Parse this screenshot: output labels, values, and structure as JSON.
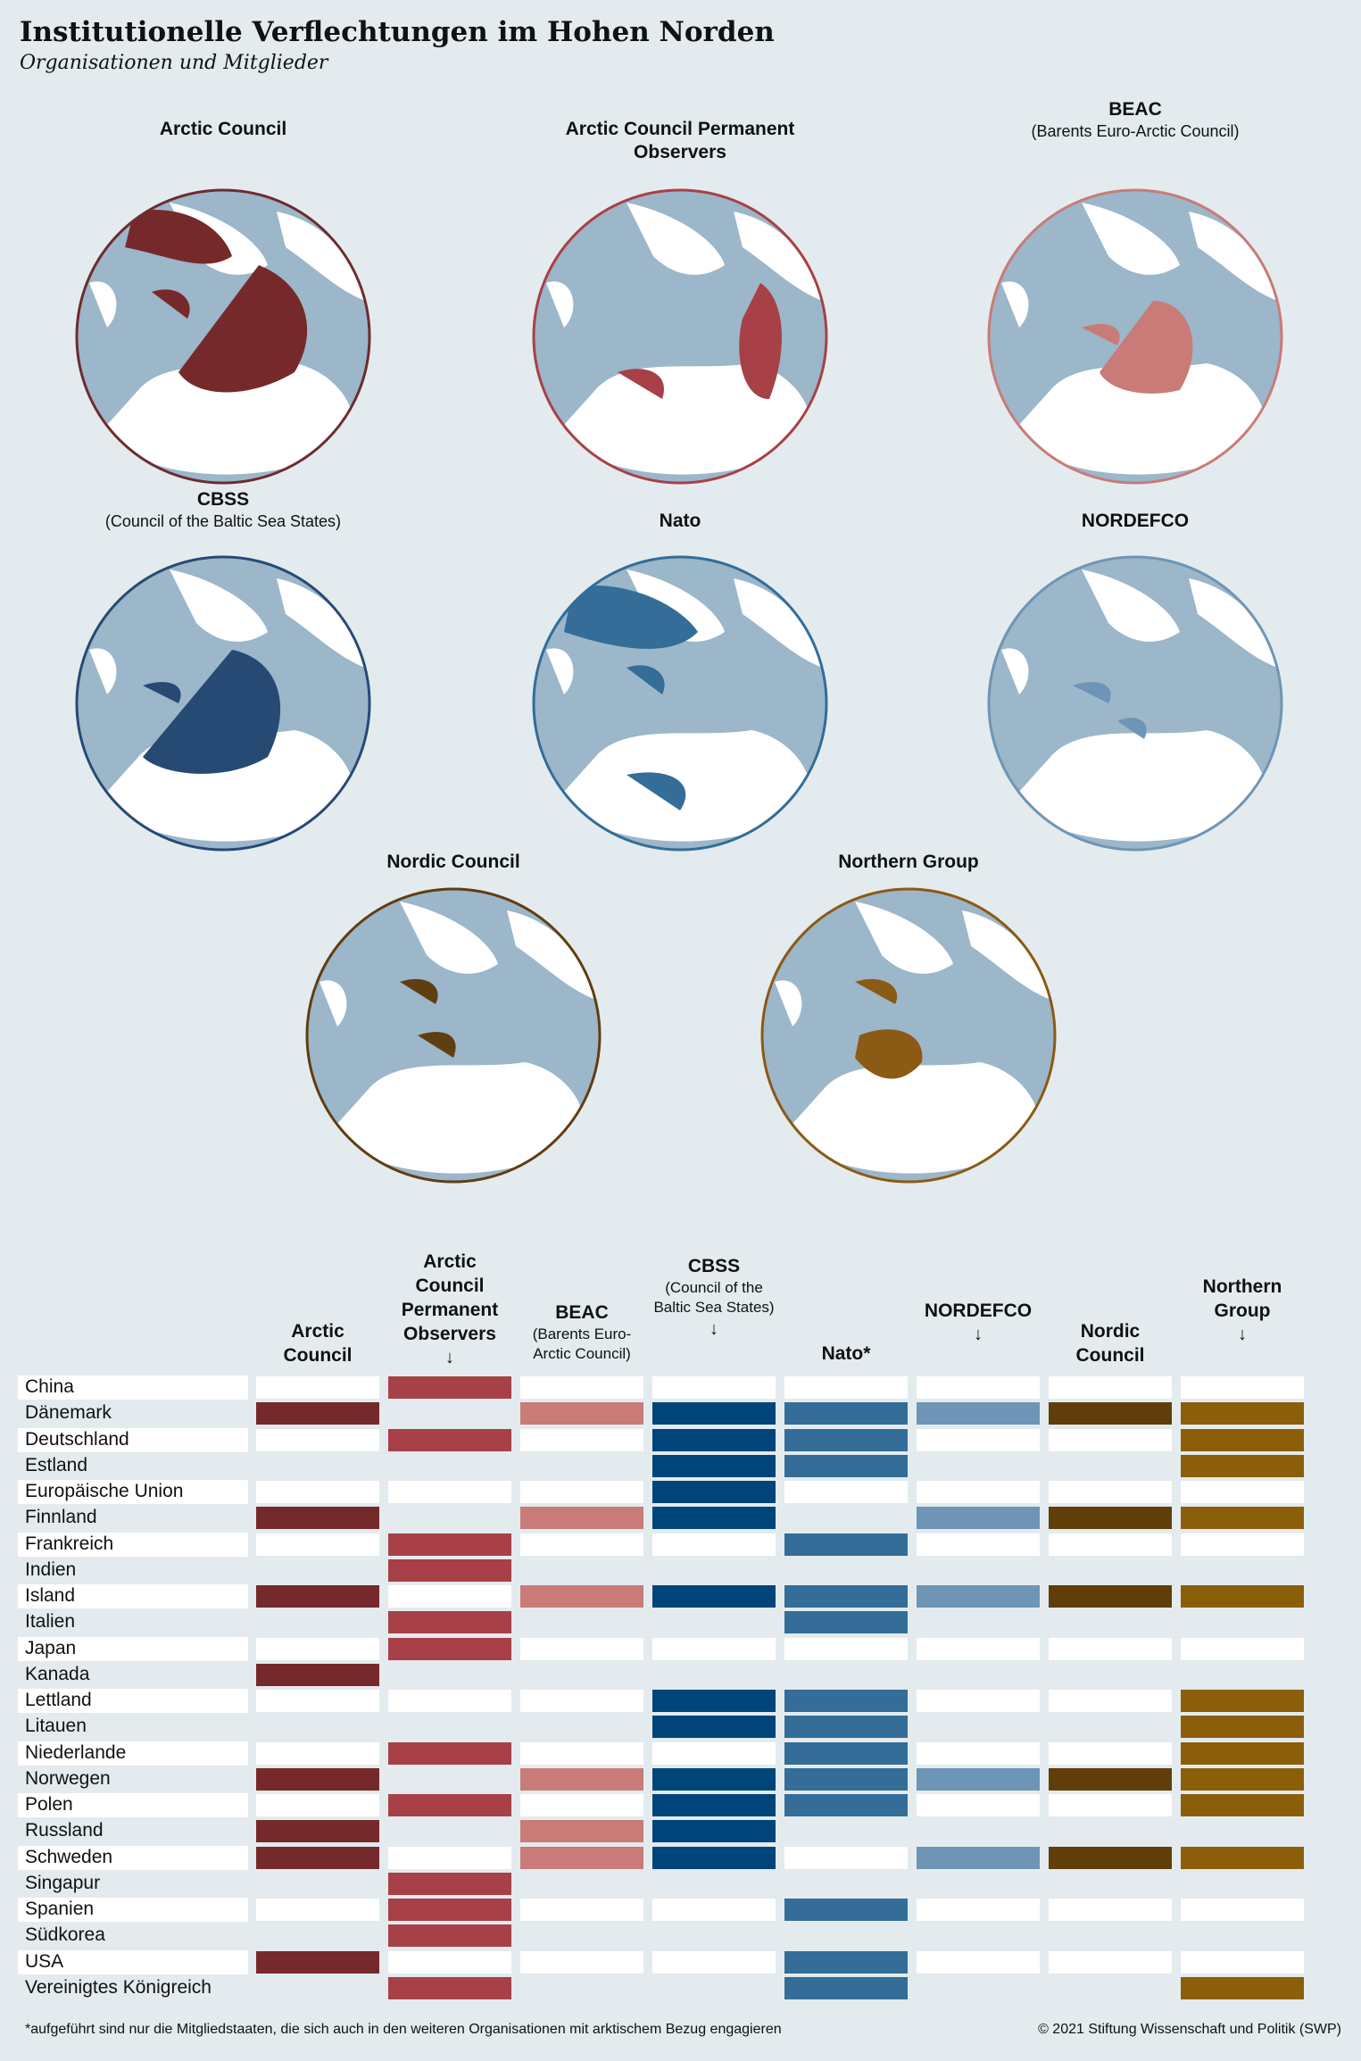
{
  "header": {
    "title": "Institutionelle Verflechtungen im Hohen Norden",
    "subtitle": "Organisationen und Mitglieder"
  },
  "maps": [
    {
      "title": "Arctic Council",
      "subtitle": "",
      "color": "#76292b",
      "ring": "#6e2b2e"
    },
    {
      "title": "Arctic Council Permanent Observers",
      "subtitle": "",
      "color": "#a84047",
      "ring": "#a84047"
    },
    {
      "title": "BEAC",
      "subtitle": "(Barents Euro-Arctic Council)",
      "color": "#c97b78",
      "ring": "#c97b78"
    },
    {
      "title": "CBSS",
      "subtitle": "(Council of the Baltic Sea States)",
      "color": "#264a74",
      "ring": "#264a74"
    },
    {
      "title": "Nato",
      "subtitle": "",
      "color": "#336d98",
      "ring": "#336d98"
    },
    {
      "title": "NORDEFCO",
      "subtitle": "",
      "color": "#6e95b5",
      "ring": "#6e95b5"
    },
    {
      "title": "Nordic Council",
      "subtitle": "",
      "color": "#5f3e12",
      "ring": "#5f3e12"
    },
    {
      "title": "Northern Group",
      "subtitle": "",
      "color": "#8b5a14",
      "ring": "#8b5a14"
    }
  ],
  "table": {
    "columns": [
      {
        "line1": "Arctic",
        "line2": "Council",
        "line3": "",
        "note": "",
        "arrow": "",
        "color": "#76292b"
      },
      {
        "line1": "Arctic Council",
        "line2": "Permanent",
        "line3": "Observers",
        "note": "",
        "arrow": "↓",
        "color": "#a84047"
      },
      {
        "line1": "BEAC",
        "line2": "",
        "line3": "",
        "note": "(Barents Euro-Arctic Council)",
        "arrow": "",
        "color": "#c97b78"
      },
      {
        "line1": "CBSS",
        "line2": "",
        "line3": "",
        "note": "(Council of the Baltic Sea States)",
        "arrow": "↓",
        "color": "#00457a"
      },
      {
        "line1": "Nato*",
        "line2": "",
        "line3": "",
        "note": "",
        "arrow": "",
        "color": "#336d98"
      },
      {
        "line1": "NORDEFCO",
        "line2": "",
        "line3": "",
        "note": "",
        "arrow": "↓",
        "color": "#6e95b5"
      },
      {
        "line1": "Nordic",
        "line2": "Council",
        "line3": "",
        "note": "",
        "arrow": "",
        "color": "#5f3e0a"
      },
      {
        "line1": "Northern",
        "line2": "Group",
        "line3": "",
        "note": "",
        "arrow": "↓",
        "color": "#8b5e0a"
      }
    ],
    "rows": [
      {
        "country": "China",
        "m": [
          0,
          1,
          0,
          0,
          0,
          0,
          0,
          0
        ]
      },
      {
        "country": "Dänemark",
        "m": [
          1,
          0,
          1,
          1,
          1,
          1,
          1,
          1
        ]
      },
      {
        "country": "Deutschland",
        "m": [
          0,
          1,
          0,
          1,
          1,
          0,
          0,
          1
        ]
      },
      {
        "country": "Estland",
        "m": [
          0,
          0,
          0,
          1,
          1,
          0,
          0,
          1
        ]
      },
      {
        "country": "Europäische Union",
        "m": [
          0,
          0,
          0,
          1,
          0,
          0,
          0,
          0
        ]
      },
      {
        "country": "Finnland",
        "m": [
          1,
          0,
          1,
          1,
          0,
          1,
          1,
          1
        ]
      },
      {
        "country": "Frankreich",
        "m": [
          0,
          1,
          0,
          0,
          1,
          0,
          0,
          0
        ]
      },
      {
        "country": "Indien",
        "m": [
          0,
          1,
          0,
          0,
          0,
          0,
          0,
          0
        ]
      },
      {
        "country": "Island",
        "m": [
          1,
          0,
          1,
          1,
          1,
          1,
          1,
          1
        ]
      },
      {
        "country": "Italien",
        "m": [
          0,
          1,
          0,
          0,
          1,
          0,
          0,
          0
        ]
      },
      {
        "country": "Japan",
        "m": [
          0,
          1,
          0,
          0,
          0,
          0,
          0,
          0
        ]
      },
      {
        "country": "Kanada",
        "m": [
          1,
          0,
          0,
          0,
          0,
          0,
          0,
          0
        ]
      },
      {
        "country": "Lettland",
        "m": [
          0,
          0,
          0,
          1,
          1,
          0,
          0,
          1
        ]
      },
      {
        "country": "Litauen",
        "m": [
          0,
          0,
          0,
          1,
          1,
          0,
          0,
          1
        ]
      },
      {
        "country": "Niederlande",
        "m": [
          0,
          1,
          0,
          0,
          1,
          0,
          0,
          1
        ]
      },
      {
        "country": "Norwegen",
        "m": [
          1,
          0,
          1,
          1,
          1,
          1,
          1,
          1
        ]
      },
      {
        "country": "Polen",
        "m": [
          0,
          1,
          0,
          1,
          1,
          0,
          0,
          1
        ]
      },
      {
        "country": "Russland",
        "m": [
          1,
          0,
          1,
          1,
          0,
          0,
          0,
          0
        ]
      },
      {
        "country": "Schweden",
        "m": [
          1,
          0,
          1,
          1,
          0,
          1,
          1,
          1
        ]
      },
      {
        "country": "Singapur",
        "m": [
          0,
          1,
          0,
          0,
          0,
          0,
          0,
          0
        ]
      },
      {
        "country": "Spanien",
        "m": [
          0,
          1,
          0,
          0,
          1,
          0,
          0,
          0
        ]
      },
      {
        "country": "Südkorea",
        "m": [
          0,
          1,
          0,
          0,
          0,
          0,
          0,
          0
        ]
      },
      {
        "country": "USA",
        "m": [
          1,
          0,
          0,
          0,
          1,
          0,
          0,
          0
        ]
      },
      {
        "country": "Vereinigtes Königreich",
        "m": [
          0,
          1,
          0,
          0,
          1,
          0,
          0,
          1
        ]
      }
    ]
  },
  "footer": {
    "footnote": "*aufgeführt sind nur die Mitgliedstaaten, die sich auch in den weiteren Organisationen mit arktischem Bezug engagieren",
    "copyright": "© 2021 Stiftung Wissenschaft und Politik (SWP)"
  },
  "chart_data": {
    "type": "table",
    "title": "Institutionelle Verflechtungen im Hohen Norden",
    "subtitle": "Organisationen und Mitglieder",
    "categories": [
      "Arctic Council",
      "Arctic Council Permanent Observers",
      "BEAC",
      "CBSS",
      "Nato*",
      "NORDEFCO",
      "Nordic Council",
      "Northern Group"
    ],
    "series": [
      {
        "name": "China",
        "values": [
          0,
          1,
          0,
          0,
          0,
          0,
          0,
          0
        ]
      },
      {
        "name": "Dänemark",
        "values": [
          1,
          0,
          1,
          1,
          1,
          1,
          1,
          1
        ]
      },
      {
        "name": "Deutschland",
        "values": [
          0,
          1,
          0,
          1,
          1,
          0,
          0,
          1
        ]
      },
      {
        "name": "Estland",
        "values": [
          0,
          0,
          0,
          1,
          1,
          0,
          0,
          1
        ]
      },
      {
        "name": "Europäische Union",
        "values": [
          0,
          0,
          0,
          1,
          0,
          0,
          0,
          0
        ]
      },
      {
        "name": "Finnland",
        "values": [
          1,
          0,
          1,
          1,
          0,
          1,
          1,
          1
        ]
      },
      {
        "name": "Frankreich",
        "values": [
          0,
          1,
          0,
          0,
          1,
          0,
          0,
          0
        ]
      },
      {
        "name": "Indien",
        "values": [
          0,
          1,
          0,
          0,
          0,
          0,
          0,
          0
        ]
      },
      {
        "name": "Island",
        "values": [
          1,
          0,
          1,
          1,
          1,
          1,
          1,
          1
        ]
      },
      {
        "name": "Italien",
        "values": [
          0,
          1,
          0,
          0,
          1,
          0,
          0,
          0
        ]
      },
      {
        "name": "Japan",
        "values": [
          0,
          1,
          0,
          0,
          0,
          0,
          0,
          0
        ]
      },
      {
        "name": "Kanada",
        "values": [
          1,
          0,
          0,
          0,
          0,
          0,
          0,
          0
        ]
      },
      {
        "name": "Lettland",
        "values": [
          0,
          0,
          0,
          1,
          1,
          0,
          0,
          1
        ]
      },
      {
        "name": "Litauen",
        "values": [
          0,
          0,
          0,
          1,
          1,
          0,
          0,
          1
        ]
      },
      {
        "name": "Niederlande",
        "values": [
          0,
          1,
          0,
          0,
          1,
          0,
          0,
          1
        ]
      },
      {
        "name": "Norwegen",
        "values": [
          1,
          0,
          1,
          1,
          1,
          1,
          1,
          1
        ]
      },
      {
        "name": "Polen",
        "values": [
          0,
          1,
          0,
          1,
          1,
          0,
          0,
          1
        ]
      },
      {
        "name": "Russland",
        "values": [
          1,
          0,
          1,
          1,
          0,
          0,
          0,
          0
        ]
      },
      {
        "name": "Schweden",
        "values": [
          1,
          0,
          1,
          1,
          0,
          1,
          1,
          1
        ]
      },
      {
        "name": "Singapur",
        "values": [
          0,
          1,
          0,
          0,
          0,
          0,
          0,
          0
        ]
      },
      {
        "name": "Spanien",
        "values": [
          0,
          1,
          0,
          0,
          1,
          0,
          0,
          0
        ]
      },
      {
        "name": "Südkorea",
        "values": [
          0,
          1,
          0,
          0,
          0,
          0,
          0,
          0
        ]
      },
      {
        "name": "USA",
        "values": [
          1,
          0,
          0,
          0,
          1,
          0,
          0,
          0
        ]
      },
      {
        "name": "Vereinigtes Königreich",
        "values": [
          0,
          1,
          0,
          0,
          1,
          0,
          0,
          1
        ]
      }
    ]
  }
}
